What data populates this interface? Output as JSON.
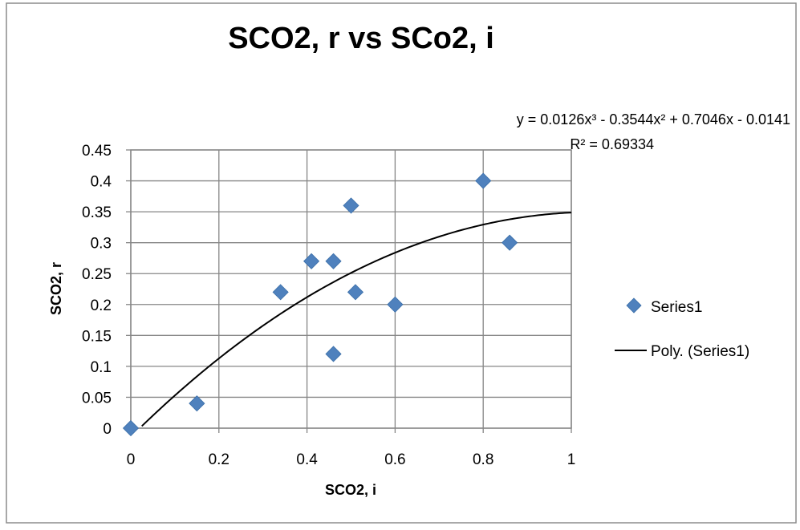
{
  "chart_data": {
    "type": "scatter",
    "title": "SCO2, r vs SCo2, i",
    "xlabel": "SCO2, i",
    "ylabel": "SCO2, r",
    "xlim": [
      0,
      1
    ],
    "ylim": [
      0,
      0.45
    ],
    "x_ticks": [
      "0",
      "0.2",
      "0.4",
      "0.6",
      "0.8",
      "1"
    ],
    "y_ticks": [
      "0",
      "0.05",
      "0.1",
      "0.15",
      "0.2",
      "0.25",
      "0.3",
      "0.35",
      "0.4",
      "0.45"
    ],
    "grid": true,
    "legend_position": "right",
    "series": [
      {
        "name": "Series1",
        "marker": "diamond",
        "color": "#4F81BD",
        "points": [
          {
            "x": 0.0,
            "y": 0.0
          },
          {
            "x": 0.15,
            "y": 0.04
          },
          {
            "x": 0.34,
            "y": 0.22
          },
          {
            "x": 0.41,
            "y": 0.27
          },
          {
            "x": 0.46,
            "y": 0.27
          },
          {
            "x": 0.46,
            "y": 0.12
          },
          {
            "x": 0.5,
            "y": 0.36
          },
          {
            "x": 0.51,
            "y": 0.22
          },
          {
            "x": 0.6,
            "y": 0.2
          },
          {
            "x": 0.8,
            "y": 0.4
          },
          {
            "x": 0.86,
            "y": 0.3
          }
        ]
      }
    ],
    "trendline": {
      "name": "Poly. (Series1)",
      "color": "#000000",
      "coefficients": [
        0.0126,
        -0.3544,
        0.7046,
        -0.0141
      ],
      "equation": "y = 0.0126x³ - 0.3544x² + 0.7046x - 0.0141",
      "r_squared": "R² = 0.69334"
    }
  }
}
